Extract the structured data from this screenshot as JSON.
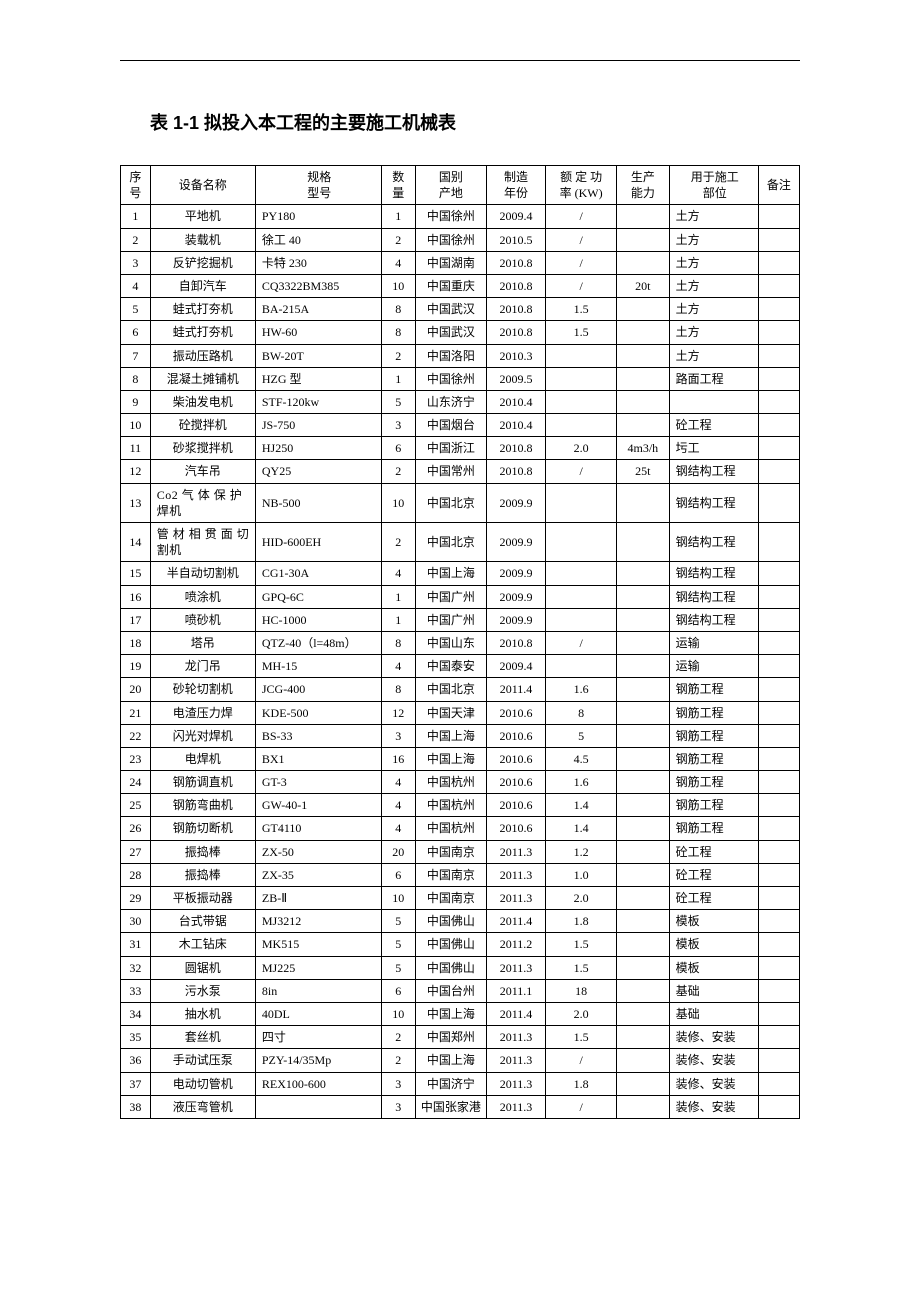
{
  "title": "表 1-1 拟投入本工程的主要施工机械表",
  "columns": {
    "idx": "序\n号",
    "name": "设备名称",
    "spec": "规格\n型号",
    "qty": "数\n量",
    "orig": "国别\n产地",
    "year": "制造\n年份",
    "pow": "额 定 功\n率 (KW)",
    "cap": "生产\n能力",
    "use": "用于施工\n部位",
    "note": "备注"
  },
  "rows": [
    {
      "idx": "1",
      "name": "平地机",
      "spec": "PY180",
      "qty": "1",
      "orig": "中国徐州",
      "year": "2009.4",
      "pow": "/",
      "cap": "",
      "use": "土方",
      "note": ""
    },
    {
      "idx": "2",
      "name": "装载机",
      "spec": "徐工 40",
      "qty": "2",
      "orig": "中国徐州",
      "year": "2010.5",
      "pow": "/",
      "cap": "",
      "use": "土方",
      "note": ""
    },
    {
      "idx": "3",
      "name": "反铲挖掘机",
      "spec": "卡特 230",
      "qty": "4",
      "orig": "中国湖南",
      "year": "2010.8",
      "pow": "/",
      "cap": "",
      "use": "土方",
      "note": ""
    },
    {
      "idx": "4",
      "name": "自卸汽车",
      "spec": "CQ3322BM385",
      "qty": "10",
      "orig": "中国重庆",
      "year": "2010.8",
      "pow": "/",
      "cap": "20t",
      "use": "土方",
      "note": ""
    },
    {
      "idx": "5",
      "name": "蛙式打夯机",
      "spec": "BA-215A",
      "qty": "8",
      "orig": "中国武汉",
      "year": "2010.8",
      "pow": "1.5",
      "cap": "",
      "use": "土方",
      "note": ""
    },
    {
      "idx": "6",
      "name": "蛙式打夯机",
      "spec": "HW-60",
      "qty": "8",
      "orig": "中国武汉",
      "year": "2010.8",
      "pow": "1.5",
      "cap": "",
      "use": "土方",
      "note": ""
    },
    {
      "idx": "7",
      "name": "振动压路机",
      "spec": "BW-20T",
      "qty": "2",
      "orig": "中国洛阳",
      "year": "2010.3",
      "pow": "",
      "cap": "",
      "use": "土方",
      "note": ""
    },
    {
      "idx": "8",
      "name": "混凝土摊铺机",
      "spec": "HZG 型",
      "qty": "1",
      "orig": "中国徐州",
      "year": "2009.5",
      "pow": "",
      "cap": "",
      "use": "路面工程",
      "note": ""
    },
    {
      "idx": "9",
      "name": "柴油发电机",
      "spec": "STF-120kw",
      "qty": "5",
      "orig": "山东济宁",
      "year": "2010.4",
      "pow": "",
      "cap": "",
      "use": "",
      "note": ""
    },
    {
      "idx": "10",
      "name": "砼搅拌机",
      "spec": "JS-750",
      "qty": "3",
      "orig": "中国烟台",
      "year": "2010.4",
      "pow": "",
      "cap": "",
      "use": "砼工程",
      "note": ""
    },
    {
      "idx": "11",
      "name": "砂浆搅拌机",
      "spec": "HJ250",
      "qty": "6",
      "orig": "中国浙江",
      "year": "2010.8",
      "pow": "2.0",
      "cap": "4m3/h",
      "use": "圬工",
      "note": ""
    },
    {
      "idx": "12",
      "name": "汽车吊",
      "spec": "QY25",
      "qty": "2",
      "orig": "中国常州",
      "year": "2010.8",
      "pow": "/",
      "cap": "25t",
      "use": "钢结构工程",
      "note": ""
    },
    {
      "idx": "13",
      "name": "Co2 气 体 保 护焊机",
      "nameLeft": true,
      "spec": "NB-500",
      "qty": "10",
      "orig": "中国北京",
      "year": "2009.9",
      "pow": "",
      "cap": "",
      "use": "钢结构工程",
      "note": ""
    },
    {
      "idx": "14",
      "name": "管 材 相 贯 面 切割机",
      "nameLeft": true,
      "spec": "HID-600EH",
      "qty": "2",
      "orig": "中国北京",
      "year": "2009.9",
      "pow": "",
      "cap": "",
      "use": "钢结构工程",
      "note": ""
    },
    {
      "idx": "15",
      "name": "半自动切割机",
      "spec": "CG1-30A",
      "qty": "4",
      "orig": "中国上海",
      "year": "2009.9",
      "pow": "",
      "cap": "",
      "use": "钢结构工程",
      "note": ""
    },
    {
      "idx": "16",
      "name": "喷涂机",
      "spec": "GPQ-6C",
      "qty": "1",
      "orig": "中国广州",
      "year": "2009.9",
      "pow": "",
      "cap": "",
      "use": "钢结构工程",
      "note": ""
    },
    {
      "idx": "17",
      "name": "喷砂机",
      "spec": "HC-1000",
      "qty": "1",
      "orig": "中国广州",
      "year": "2009.9",
      "pow": "",
      "cap": "",
      "use": "钢结构工程",
      "note": ""
    },
    {
      "idx": "18",
      "name": "塔吊",
      "spec": "QTZ-40（l=48m）",
      "qty": "8",
      "orig": "中国山东",
      "year": "2010.8",
      "pow": "/",
      "cap": "",
      "use": "运输",
      "note": ""
    },
    {
      "idx": "19",
      "name": "龙门吊",
      "spec": "MH-15",
      "qty": "4",
      "orig": "中国泰安",
      "year": "2009.4",
      "pow": "",
      "cap": "",
      "use": "运输",
      "note": ""
    },
    {
      "idx": "20",
      "name": "砂轮切割机",
      "spec": "JCG-400",
      "qty": "8",
      "orig": "中国北京",
      "year": "2011.4",
      "pow": "1.6",
      "cap": "",
      "use": "钢筋工程",
      "note": ""
    },
    {
      "idx": "21",
      "name": "电渣压力焊",
      "spec": "KDE-500",
      "qty": "12",
      "orig": "中国天津",
      "year": "2010.6",
      "pow": "8",
      "cap": "",
      "use": "钢筋工程",
      "note": ""
    },
    {
      "idx": "22",
      "name": "闪光对焊机",
      "spec": "BS-33",
      "qty": "3",
      "orig": "中国上海",
      "year": "2010.6",
      "pow": "5",
      "cap": "",
      "use": "钢筋工程",
      "note": ""
    },
    {
      "idx": "23",
      "name": "电焊机",
      "spec": "BX1",
      "qty": "16",
      "orig": "中国上海",
      "year": "2010.6",
      "pow": "4.5",
      "cap": "",
      "use": "钢筋工程",
      "note": ""
    },
    {
      "idx": "24",
      "name": "钢筋调直机",
      "spec": "GT-3",
      "qty": "4",
      "orig": "中国杭州",
      "year": "2010.6",
      "pow": "1.6",
      "cap": "",
      "use": "钢筋工程",
      "note": ""
    },
    {
      "idx": "25",
      "name": "钢筋弯曲机",
      "spec": "GW-40-1",
      "qty": "4",
      "orig": "中国杭州",
      "year": "2010.6",
      "pow": "1.4",
      "cap": "",
      "use": "钢筋工程",
      "note": ""
    },
    {
      "idx": "26",
      "name": "钢筋切断机",
      "spec": "GT4110",
      "qty": "4",
      "orig": "中国杭州",
      "year": "2010.6",
      "pow": "1.4",
      "cap": "",
      "use": "钢筋工程",
      "note": ""
    },
    {
      "idx": "27",
      "name": "振捣棒",
      "spec": "ZX-50",
      "qty": "20",
      "orig": "中国南京",
      "year": "2011.3",
      "pow": "1.2",
      "cap": "",
      "use": "砼工程",
      "note": ""
    },
    {
      "idx": "28",
      "name": "振捣棒",
      "spec": "ZX-35",
      "qty": "6",
      "orig": "中国南京",
      "year": "2011.3",
      "pow": "1.0",
      "cap": "",
      "use": "砼工程",
      "note": ""
    },
    {
      "idx": "29",
      "name": "平板振动器",
      "spec": "ZB-Ⅱ",
      "qty": "10",
      "orig": "中国南京",
      "year": "2011.3",
      "pow": "2.0",
      "cap": "",
      "use": "砼工程",
      "note": ""
    },
    {
      "idx": "30",
      "name": "台式带锯",
      "spec": "MJ3212",
      "qty": "5",
      "orig": "中国佛山",
      "year": "2011.4",
      "pow": "1.8",
      "cap": "",
      "use": "模板",
      "note": ""
    },
    {
      "idx": "31",
      "name": "木工钻床",
      "spec": "MK515",
      "qty": "5",
      "orig": "中国佛山",
      "year": "2011.2",
      "pow": "1.5",
      "cap": "",
      "use": "模板",
      "note": ""
    },
    {
      "idx": "32",
      "name": "圆锯机",
      "spec": "MJ225",
      "qty": "5",
      "orig": "中国佛山",
      "year": "2011.3",
      "pow": "1.5",
      "cap": "",
      "use": "模板",
      "note": ""
    },
    {
      "idx": "33",
      "name": "污水泵",
      "spec": "8in",
      "qty": "6",
      "orig": "中国台州",
      "year": "2011.1",
      "pow": "18",
      "cap": "",
      "use": "基础",
      "note": ""
    },
    {
      "idx": "34",
      "name": "抽水机",
      "spec": "40DL",
      "qty": "10",
      "orig": "中国上海",
      "year": "2011.4",
      "pow": "2.0",
      "cap": "",
      "use": "基础",
      "note": ""
    },
    {
      "idx": "35",
      "name": "套丝机",
      "spec": "四寸",
      "qty": "2",
      "orig": "中国郑州",
      "year": "2011.3",
      "pow": "1.5",
      "cap": "",
      "use": "装修、安装",
      "note": ""
    },
    {
      "idx": "36",
      "name": "手动试压泵",
      "spec": "PZY-14/35Mp",
      "qty": "2",
      "orig": "中国上海",
      "year": "2011.3",
      "pow": "/",
      "cap": "",
      "use": "装修、安装",
      "note": ""
    },
    {
      "idx": "37",
      "name": "电动切管机",
      "spec": "REX100-600",
      "qty": "3",
      "orig": "中国济宁",
      "year": "2011.3",
      "pow": "1.8",
      "cap": "",
      "use": "装修、安装",
      "note": ""
    },
    {
      "idx": "38",
      "name": "液压弯管机",
      "spec": "",
      "qty": "3",
      "orig": "中国张家港",
      "year": "2011.3",
      "pow": "/",
      "cap": "",
      "use": "装修、安装",
      "note": ""
    }
  ]
}
